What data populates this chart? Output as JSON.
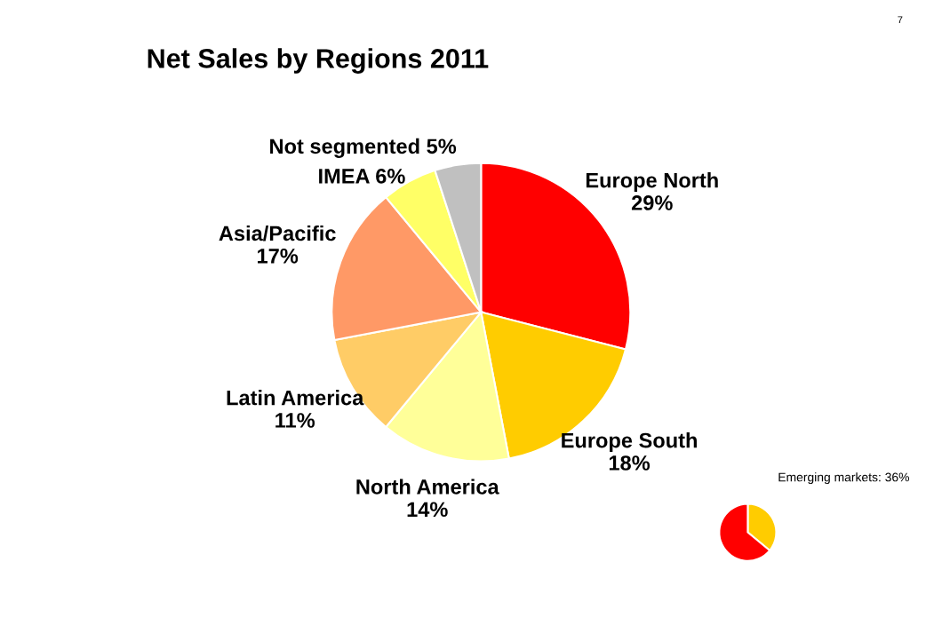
{
  "chart_data": [
    {
      "type": "pie",
      "title": "Net Sales by Regions 2011",
      "categories": [
        "Europe North",
        "Europe South",
        "North America",
        "Latin America",
        "Asia/Pacific",
        "IMEA",
        "Not segmented"
      ],
      "values": [
        29,
        18,
        14,
        11,
        17,
        6,
        5
      ],
      "value_labels": [
        "29%",
        "18%",
        "14%",
        "11%",
        "17%",
        "6%",
        "5%"
      ],
      "colors": [
        "#ff0000",
        "#ffcc00",
        "#ffff99",
        "#ffcc66",
        "#ff9966",
        "#ffff66",
        "#c0c0c0"
      ],
      "annotations": [
        "7"
      ]
    },
    {
      "type": "pie",
      "categories": [
        null,
        null
      ],
      "values": [
        36,
        64
      ],
      "colors": [
        "#ffcc00",
        "#ff0000"
      ],
      "annotations": [
        "Emerging markets: 36%"
      ]
    }
  ]
}
